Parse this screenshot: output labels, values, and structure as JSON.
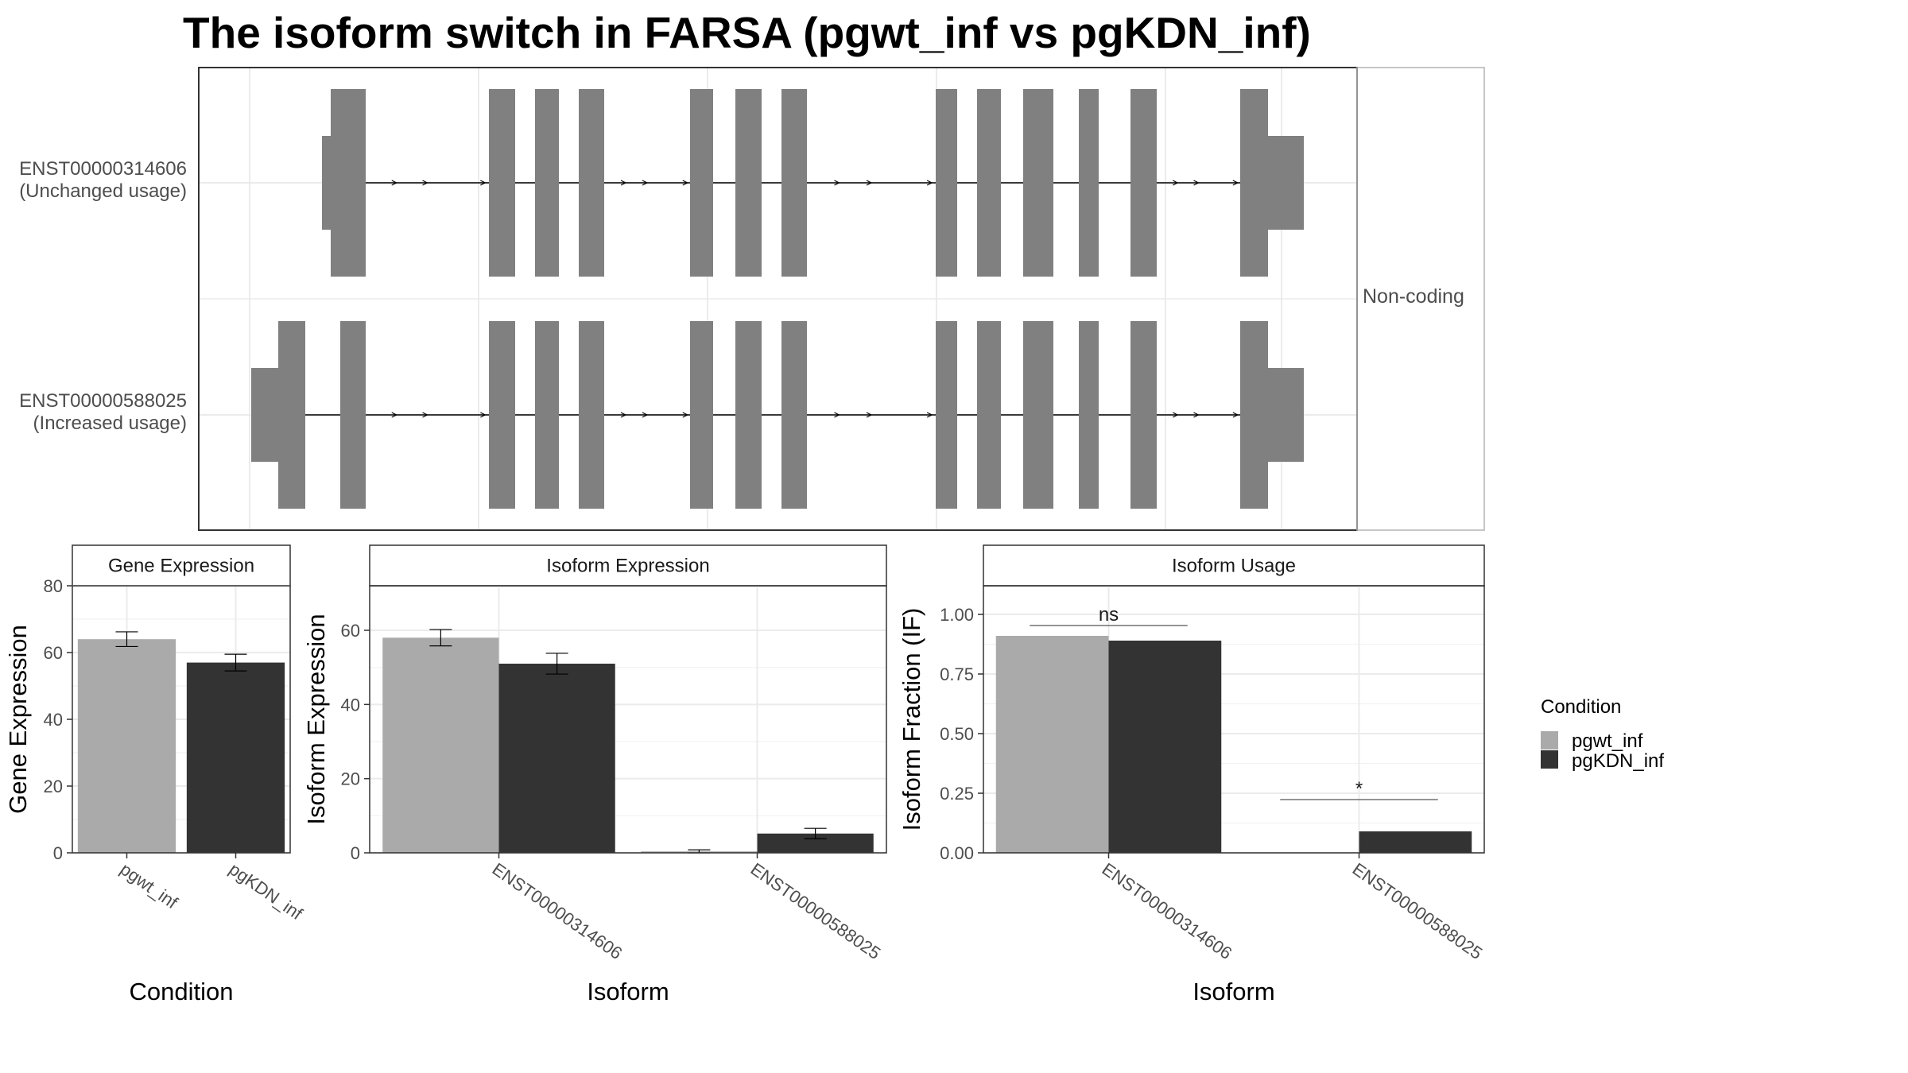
{
  "title": "The isoform switch in FARSA (pgwt_inf vs pgKDN_inf)",
  "colors": {
    "pgwt_inf": "#aaaaaa",
    "pgKDN_inf": "#333333",
    "exon": "#808080",
    "grid": "#ebebeb",
    "panel_border": "#333333"
  },
  "chart_data": [
    {
      "type": "gene_structure",
      "facet_label": "Non-coding",
      "transcripts": [
        {
          "id": "ENST00000314606",
          "usage_label": "(Unchanged usage)"
        },
        {
          "id": "ENST00000588025",
          "usage_label": "(Increased usage)"
        }
      ]
    },
    {
      "type": "bar",
      "panel_title": "Gene Expression",
      "xlabel": "Condition",
      "ylabel": "Gene Expression",
      "ylim": [
        0,
        80
      ],
      "yticks": [
        0,
        20,
        40,
        60,
        80
      ],
      "categories": [
        "pgwt_inf",
        "pgKDN_inf"
      ],
      "values": [
        64,
        57
      ],
      "errors": [
        2.2,
        2.5
      ]
    },
    {
      "type": "bar",
      "panel_title": "Isoform Expression",
      "xlabel": "Isoform",
      "ylabel": "Isoform Expression",
      "ylim": [
        0,
        72
      ],
      "yticks": [
        0,
        20,
        40,
        60
      ],
      "categories": [
        "ENST00000314606",
        "ENST00000588025"
      ],
      "series": [
        {
          "name": "pgwt_inf",
          "values": [
            58,
            0.4
          ],
          "errors": [
            2.2,
            0.4
          ]
        },
        {
          "name": "pgKDN_inf",
          "values": [
            51,
            5.2
          ],
          "errors": [
            2.8,
            1.4
          ]
        }
      ]
    },
    {
      "type": "bar",
      "panel_title": "Isoform Usage",
      "xlabel": "Isoform",
      "ylabel": "Isoform Fraction (IF)",
      "ylim": [
        0,
        1.12
      ],
      "yticks": [
        "0.00",
        "0.25",
        "0.50",
        "0.75",
        "1.00"
      ],
      "categories": [
        "ENST00000314606",
        "ENST00000588025"
      ],
      "series": [
        {
          "name": "pgwt_inf",
          "values": [
            0.91,
            0.0
          ]
        },
        {
          "name": "pgKDN_inf",
          "values": [
            0.89,
            0.09
          ]
        }
      ],
      "significance": [
        "ns",
        "*"
      ]
    }
  ],
  "legend": {
    "title": "Condition",
    "items": [
      "pgwt_inf",
      "pgKDN_inf"
    ]
  }
}
